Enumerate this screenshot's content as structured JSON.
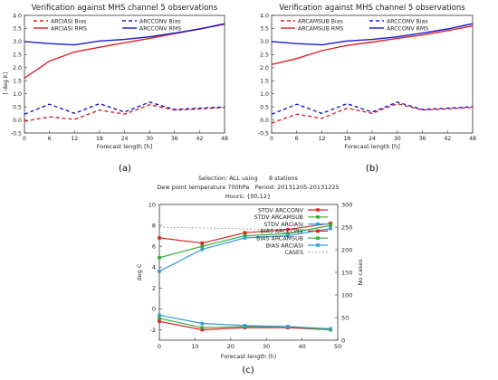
{
  "captions": [
    "(a)",
    "(b)",
    "(c)"
  ],
  "chart_data": [
    {
      "type": "line",
      "title": "Verification against MHS channel 5 observations",
      "xlabel": "Forecast length [h]",
      "ylabel": "[ deg K]",
      "xlim": [
        0,
        48
      ],
      "ylim": [
        -0.5,
        4.0
      ],
      "xticks": [
        0,
        6,
        12,
        18,
        24,
        30,
        36,
        42,
        48
      ],
      "yticks": [
        -0.5,
        0.0,
        0.5,
        1.0,
        1.5,
        2.0,
        2.5,
        3.0,
        3.5,
        4.0
      ],
      "legend_placement": "top",
      "x": [
        0,
        6,
        12,
        18,
        24,
        30,
        36,
        42,
        48
      ],
      "series": [
        {
          "name": "ARCIASI Bias",
          "color": "#dd2222",
          "dashed": true,
          "values": [
            -0.05,
            0.12,
            0.02,
            0.38,
            0.22,
            0.58,
            0.38,
            0.42,
            0.48
          ]
        },
        {
          "name": "ARCCONV Bias",
          "color": "#1a1acc",
          "dashed": true,
          "values": [
            0.22,
            0.6,
            0.25,
            0.62,
            0.3,
            0.68,
            0.4,
            0.45,
            0.5
          ]
        },
        {
          "name": "ARCIASI RMS",
          "color": "#dd2222",
          "dashed": false,
          "values": [
            1.6,
            2.25,
            2.6,
            2.78,
            2.95,
            3.12,
            3.3,
            3.48,
            3.66
          ]
        },
        {
          "name": "ARCCONV RMS",
          "color": "#1a1acc",
          "dashed": false,
          "values": [
            3.0,
            2.92,
            2.87,
            3.02,
            3.08,
            3.18,
            3.32,
            3.48,
            3.68
          ]
        }
      ]
    },
    {
      "type": "line",
      "title": "Verification against MHS channel 5 observations",
      "xlabel": "Forecast length [h]",
      "ylabel": "",
      "xlim": [
        0,
        48
      ],
      "ylim": [
        -0.5,
        4.0
      ],
      "xticks": [
        0,
        6,
        12,
        18,
        24,
        30,
        36,
        42,
        48
      ],
      "yticks": [
        -0.5,
        0.0,
        0.5,
        1.0,
        1.5,
        2.0,
        2.5,
        3.0,
        3.5,
        4.0
      ],
      "legend_placement": "top",
      "x": [
        0,
        6,
        12,
        18,
        24,
        30,
        36,
        42,
        48
      ],
      "series": [
        {
          "name": "ARCAMSUB Bias",
          "color": "#dd2222",
          "dashed": true,
          "values": [
            -0.12,
            0.22,
            0.06,
            0.45,
            0.25,
            0.62,
            0.38,
            0.42,
            0.48
          ]
        },
        {
          "name": "ARCCONV Bias",
          "color": "#1a1acc",
          "dashed": true,
          "values": [
            0.22,
            0.6,
            0.25,
            0.62,
            0.3,
            0.68,
            0.4,
            0.45,
            0.5
          ]
        },
        {
          "name": "ARCAMSUB RMS",
          "color": "#dd2222",
          "dashed": false,
          "values": [
            2.12,
            2.35,
            2.65,
            2.85,
            2.98,
            3.12,
            3.25,
            3.42,
            3.6
          ]
        },
        {
          "name": "ARCCONV RMS",
          "color": "#1a1acc",
          "dashed": false,
          "values": [
            3.0,
            2.92,
            2.87,
            3.02,
            3.08,
            3.18,
            3.32,
            3.48,
            3.68
          ]
        }
      ]
    },
    {
      "type": "line",
      "title_lines": [
        "Selection: ALL using      8 stations",
        "Dew point temperature 700hPa   Period: 20131205-20131225",
        "Hours: {00,12}"
      ],
      "xlabel": "Forecast length (h)",
      "ylabel": "deg C",
      "ylabel_right": "No cases",
      "xlim": [
        0,
        50
      ],
      "ylim": [
        -3,
        10
      ],
      "ylim_right": [
        0,
        300
      ],
      "xticks": [
        0,
        10,
        20,
        30,
        40,
        50
      ],
      "yticks": [
        -2,
        0,
        2,
        4,
        6,
        8,
        10
      ],
      "yticks_right": [
        0,
        50,
        100,
        150,
        200,
        250,
        300
      ],
      "legend_placement": "top-right",
      "x": [
        0,
        12,
        24,
        36,
        48
      ],
      "series": [
        {
          "name": "STDV ARCCONV",
          "color": "#dd2222",
          "marker": true,
          "values": [
            6.8,
            6.3,
            7.3,
            7.6,
            8.2
          ]
        },
        {
          "name": "STDV ARCAMSUB",
          "color": "#33aa33",
          "marker": true,
          "values": [
            4.9,
            6.0,
            7.0,
            7.2,
            8.0
          ]
        },
        {
          "name": "STDV ARCIASI",
          "color": "#3399dd",
          "marker": true,
          "values": [
            3.6,
            5.7,
            6.8,
            7.0,
            7.7
          ]
        },
        {
          "name": "BIAS ARCCONV",
          "color": "#dd2222",
          "marker": true,
          "values": [
            -1.2,
            -2.0,
            -1.8,
            -1.8,
            -2.0
          ]
        },
        {
          "name": "BIAS ARCAMSUB",
          "color": "#33aa33",
          "marker": true,
          "values": [
            -0.9,
            -1.8,
            -1.7,
            -1.7,
            -2.0
          ]
        },
        {
          "name": "BIAS ARCIASI",
          "color": "#3399dd",
          "marker": true,
          "values": [
            -0.6,
            -1.4,
            -1.6,
            -1.7,
            -1.9
          ]
        },
        {
          "name": "CASES",
          "color": "#999999",
          "marker": false,
          "dotted": true,
          "axis": "right",
          "values": [
            250,
            248,
            246,
            245,
            244
          ]
        }
      ]
    }
  ]
}
